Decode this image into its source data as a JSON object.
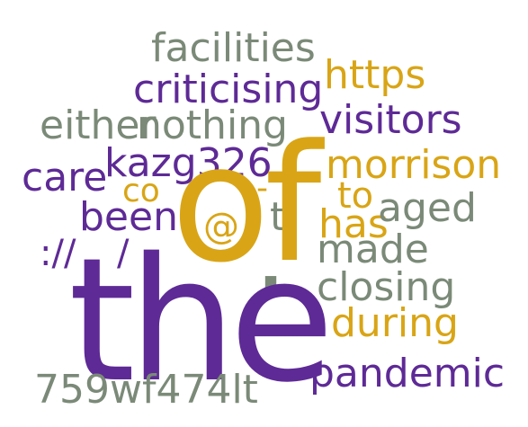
{
  "palette": {
    "purple": "#5e2a96",
    "gold": "#d9a516",
    "gray": "#7b8a78"
  },
  "words": {
    "the": "the",
    "of": "of",
    "facilities": "facilities",
    "https": "https",
    "criticising": "criticising",
    "either": "either",
    "nothing": "nothing",
    "visitors": "visitors",
    "care": "care",
    "kazg326": "kazg326",
    "morrison": "morrison",
    "co": "co",
    "dash": "-",
    "to": "to",
    "been": "been",
    "t": "t",
    "has": "has",
    "aged": "aged",
    "at": "@",
    "colon_slashes": "://",
    "slash": "/",
    "made": "made",
    "dot": ".",
    "closing": "closing",
    "during": "during",
    "pandemic": "pandemic",
    "code": "759wf474lt"
  }
}
